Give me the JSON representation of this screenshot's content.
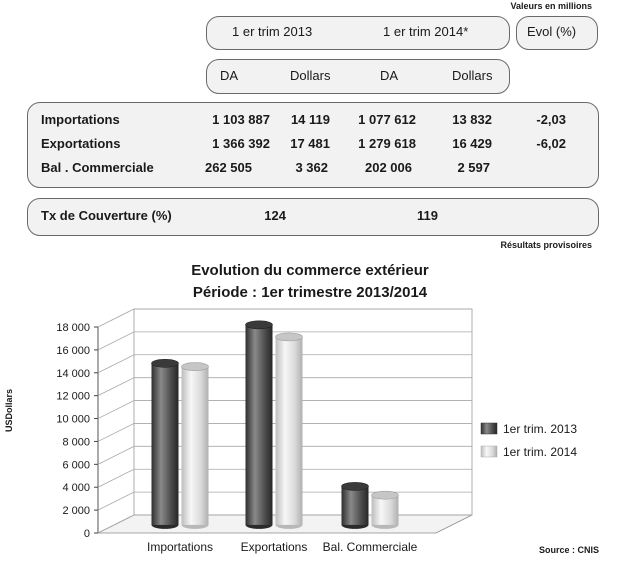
{
  "units_note": "Valeurs en millions",
  "table": {
    "period_headers": [
      "1 er trim 2013",
      "1 er trim 2014*"
    ],
    "evol_header": "Evol (%)",
    "currency_headers": [
      "DA",
      "Dollars",
      "DA",
      "Dollars"
    ],
    "rows": [
      {
        "label": "Importations",
        "values": [
          "1 103 887",
          "14 119",
          "1 077 612",
          "13 832"
        ],
        "evol": "-2,03"
      },
      {
        "label": "Exportations",
        "values": [
          "1 366 392",
          "17 481",
          "1 279 618",
          "16 429"
        ],
        "evol": "-6,02"
      },
      {
        "label": "Bal . Commerciale",
        "values": [
          "262 505",
          "3 362",
          "202 006",
          "2 597"
        ],
        "evol": ""
      }
    ],
    "coverage": {
      "label": "Tx de Couverture (%)",
      "values": [
        "124",
        "119"
      ]
    },
    "footnote": "Résultats provisoires"
  },
  "chart_data": {
    "type": "bar",
    "title": "Evolution du commerce extérieur",
    "subtitle": "Période : 1er trimestre 2013/2014",
    "ylabel": "USDollars",
    "xlabel": "",
    "categories": [
      "Importations",
      "Exportations",
      "Bal. Commerciale"
    ],
    "series": [
      {
        "name": "1er trim. 2013",
        "values": [
          14119,
          17481,
          3362
        ],
        "color": "#555555"
      },
      {
        "name": "1er trim. 2014",
        "values": [
          13832,
          16429,
          2597
        ],
        "color": "#d9d9d9"
      }
    ],
    "ylim": [
      0,
      18000
    ],
    "yticks": [
      "0",
      "2 000",
      "4 000",
      "6 000",
      "8 000",
      "10 000",
      "12 000",
      "14 000",
      "16 000",
      "18 000"
    ],
    "legend_position": "right",
    "grid": true,
    "style": "3d-cylinder"
  },
  "source": "Source : CNIS"
}
